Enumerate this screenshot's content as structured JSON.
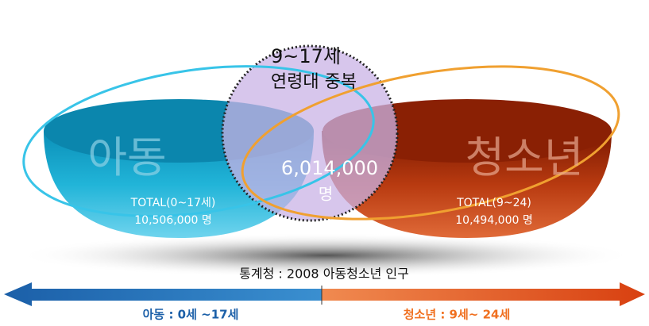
{
  "overlap": {
    "age": "9~17세",
    "label": "연령대 중복",
    "count": "6,014,000",
    "unit": "명"
  },
  "left": {
    "title": "아동",
    "total": "TOTAL(0~17세)",
    "count": "10,506,000 명"
  },
  "right": {
    "title": "청소년",
    "total": "TOTAL(9~24)",
    "count": "10,494,000 명"
  },
  "source": "통계청 : 2008 아동청소년 인구",
  "arrows": {
    "left": "아동 : 0세 ~17세",
    "right": "청소년 : 9세~ 24세"
  }
}
